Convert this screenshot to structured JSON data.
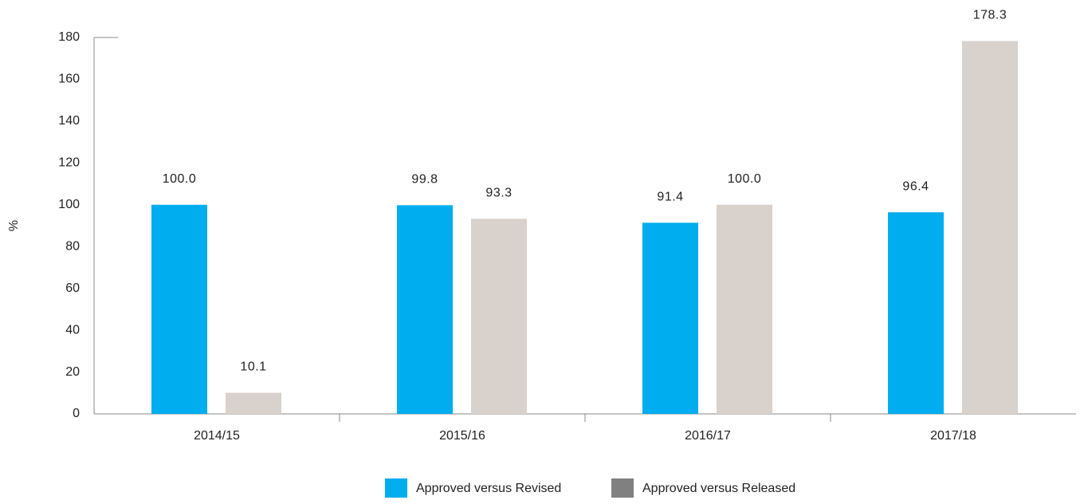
{
  "chart_data": {
    "type": "bar",
    "y_label": "%",
    "categories": [
      "2014/15",
      "2015/16",
      "2016/17",
      "2017/18"
    ],
    "series": [
      {
        "name": "Approved versus Revised",
        "color": "#00adef",
        "legend_color": "#00adef",
        "values": [
          100.0,
          99.8,
          91.4,
          96.4
        ],
        "value_labels": [
          "100.0",
          "99.8",
          "91.4",
          "96.4"
        ]
      },
      {
        "name": "Approved versus Released",
        "color": "#d9d1cb",
        "legend_color": "#808080",
        "values": [
          10.1,
          93.3,
          100.0,
          178.3
        ],
        "value_labels": [
          "10.1",
          "93.3",
          "100.0",
          "178.3"
        ]
      }
    ],
    "ylim": [
      0,
      180
    ],
    "yticks": [
      0,
      20,
      40,
      60,
      80,
      100,
      120,
      140,
      160,
      180
    ],
    "grid": false
  }
}
